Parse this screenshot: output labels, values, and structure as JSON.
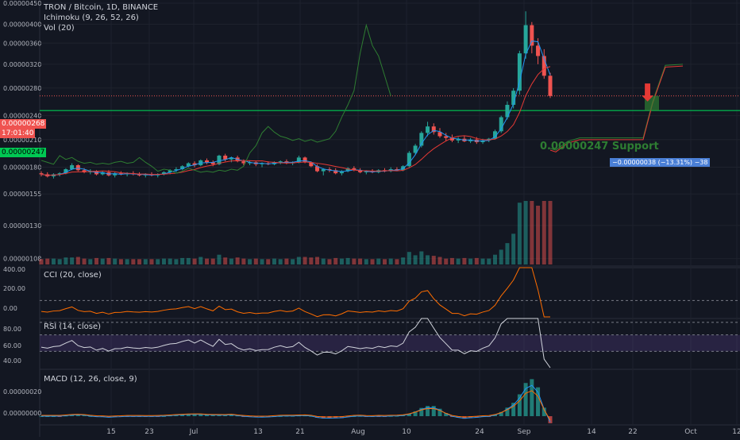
{
  "header": {
    "symbol_line": "TRON / Bitcoin, 1D, BINANCE",
    "ichimoku_label": "Ichimoku (9, 26, 52, 26)",
    "vol_label": "Vol (20)"
  },
  "indicators": {
    "cci_label": "CCI (20, close)",
    "rsi_label": "RSI (14, close)",
    "macd_label": "MACD (12, 26, close, 9)"
  },
  "price_tags": {
    "last_price": "0.00000268",
    "countdown": "17:01:40",
    "support_price": "0.00000247"
  },
  "annotations": {
    "support_text": "0.00000247 Support",
    "measure_text": "−0.00000038 (−13.31%) −38",
    "arrow_icon": "down-arrow-icon"
  },
  "colors": {
    "background": "#131722",
    "up_candle": "#26a69a",
    "down_candle": "#ef5350",
    "support_line": "#00c853",
    "cloud_green": "#2e7d32",
    "tenkan": "#2196f3",
    "kijun": "#e53935",
    "cci_line": "#ff6d00",
    "rsi_line": "#d1d4dc",
    "rsi_band": "#7e57c2",
    "macd_line": "#2196f3",
    "signal_line": "#ff6d00",
    "measure_box": "#4a7fd6"
  },
  "chart_data": {
    "type": "candlestick",
    "title": "TRON / Bitcoin, 1D, BINANCE",
    "y_axis": {
      "ticks": [
        "0.00000450",
        "0.00000400",
        "0.00000360",
        "0.00000320",
        "0.00000280",
        "0.00000240",
        "0.00000210",
        "0.00000180",
        "0.00000155",
        "0.00000130",
        "0.00000108"
      ]
    },
    "x_axis": {
      "ticks": [
        "15",
        "23",
        "Jul",
        "13",
        "21",
        "Aug",
        "10",
        "24",
        "Sep",
        "14",
        "22",
        "Oct",
        "12"
      ]
    },
    "candles": [
      [
        1.74,
        1.76,
        1.71,
        1.73
      ],
      [
        1.73,
        1.75,
        1.7,
        1.71
      ],
      [
        1.71,
        1.74,
        1.69,
        1.73
      ],
      [
        1.73,
        1.75,
        1.71,
        1.74
      ],
      [
        1.74,
        1.79,
        1.73,
        1.78
      ],
      [
        1.78,
        1.84,
        1.77,
        1.82
      ],
      [
        1.82,
        1.83,
        1.76,
        1.77
      ],
      [
        1.77,
        1.79,
        1.74,
        1.75
      ],
      [
        1.75,
        1.78,
        1.73,
        1.76
      ],
      [
        1.76,
        1.77,
        1.72,
        1.73
      ],
      [
        1.73,
        1.76,
        1.72,
        1.75
      ],
      [
        1.75,
        1.77,
        1.71,
        1.72
      ],
      [
        1.72,
        1.75,
        1.7,
        1.74
      ],
      [
        1.74,
        1.76,
        1.72,
        1.73
      ],
      [
        1.73,
        1.75,
        1.71,
        1.74
      ],
      [
        1.74,
        1.76,
        1.72,
        1.73
      ],
      [
        1.73,
        1.75,
        1.71,
        1.72
      ],
      [
        1.72,
        1.74,
        1.7,
        1.73
      ],
      [
        1.73,
        1.75,
        1.71,
        1.72
      ],
      [
        1.72,
        1.74,
        1.7,
        1.73
      ],
      [
        1.73,
        1.76,
        1.72,
        1.75
      ],
      [
        1.75,
        1.78,
        1.73,
        1.77
      ],
      [
        1.77,
        1.8,
        1.75,
        1.78
      ],
      [
        1.78,
        1.82,
        1.77,
        1.81
      ],
      [
        1.81,
        1.85,
        1.8,
        1.84
      ],
      [
        1.84,
        1.86,
        1.8,
        1.82
      ],
      [
        1.82,
        1.88,
        1.81,
        1.87
      ],
      [
        1.87,
        1.89,
        1.83,
        1.85
      ],
      [
        1.85,
        1.87,
        1.81,
        1.83
      ],
      [
        1.83,
        1.93,
        1.82,
        1.92
      ],
      [
        1.92,
        1.94,
        1.86,
        1.88
      ],
      [
        1.88,
        1.91,
        1.85,
        1.9
      ],
      [
        1.9,
        1.92,
        1.85,
        1.86
      ],
      [
        1.86,
        1.88,
        1.82,
        1.84
      ],
      [
        1.84,
        1.87,
        1.82,
        1.85
      ],
      [
        1.85,
        1.86,
        1.81,
        1.83
      ],
      [
        1.83,
        1.85,
        1.8,
        1.84
      ],
      [
        1.84,
        1.86,
        1.82,
        1.83
      ],
      [
        1.83,
        1.86,
        1.82,
        1.85
      ],
      [
        1.85,
        1.87,
        1.83,
        1.86
      ],
      [
        1.86,
        1.88,
        1.83,
        1.84
      ],
      [
        1.84,
        1.86,
        1.82,
        1.85
      ],
      [
        1.85,
        1.92,
        1.84,
        1.9
      ],
      [
        1.9,
        1.91,
        1.84,
        1.85
      ],
      [
        1.85,
        1.86,
        1.8,
        1.81
      ],
      [
        1.81,
        1.83,
        1.75,
        1.76
      ],
      [
        1.76,
        1.79,
        1.72,
        1.78
      ],
      [
        1.78,
        1.8,
        1.75,
        1.77
      ],
      [
        1.77,
        1.79,
        1.73,
        1.74
      ],
      [
        1.74,
        1.77,
        1.72,
        1.76
      ],
      [
        1.76,
        1.8,
        1.75,
        1.79
      ],
      [
        1.79,
        1.81,
        1.76,
        1.77
      ],
      [
        1.77,
        1.79,
        1.74,
        1.75
      ],
      [
        1.75,
        1.77,
        1.73,
        1.76
      ],
      [
        1.76,
        1.78,
        1.74,
        1.75
      ],
      [
        1.75,
        1.78,
        1.74,
        1.77
      ],
      [
        1.77,
        1.79,
        1.75,
        1.76
      ],
      [
        1.76,
        1.8,
        1.75,
        1.78
      ],
      [
        1.78,
        1.8,
        1.76,
        1.77
      ],
      [
        1.77,
        1.82,
        1.76,
        1.81
      ],
      [
        1.81,
        1.97,
        1.8,
        1.95
      ],
      [
        1.95,
        2.05,
        1.93,
        2.03
      ],
      [
        2.03,
        2.2,
        2.01,
        2.18
      ],
      [
        2.18,
        2.32,
        2.14,
        2.26
      ],
      [
        2.26,
        2.3,
        2.16,
        2.19
      ],
      [
        2.19,
        2.24,
        2.12,
        2.14
      ],
      [
        2.14,
        2.18,
        2.08,
        2.12
      ],
      [
        2.12,
        2.16,
        2.07,
        2.09
      ],
      [
        2.09,
        2.13,
        2.06,
        2.11
      ],
      [
        2.11,
        2.14,
        2.07,
        2.08
      ],
      [
        2.08,
        2.12,
        2.06,
        2.1
      ],
      [
        2.1,
        2.13,
        2.05,
        2.07
      ],
      [
        2.07,
        2.11,
        2.05,
        2.09
      ],
      [
        2.09,
        2.12,
        2.07,
        2.11
      ],
      [
        2.11,
        2.22,
        2.1,
        2.2
      ],
      [
        2.2,
        2.4,
        2.18,
        2.38
      ],
      [
        2.38,
        2.6,
        2.35,
        2.55
      ],
      [
        2.55,
        2.8,
        2.5,
        2.76
      ],
      [
        2.76,
        3.45,
        2.7,
        3.4
      ],
      [
        3.4,
        4.3,
        3.3,
        3.98
      ],
      [
        3.98,
        4.05,
        3.4,
        3.55
      ],
      [
        3.55,
        3.7,
        3.2,
        3.35
      ],
      [
        3.35,
        3.48,
        2.95,
        3.0
      ],
      [
        3.0,
        3.05,
        2.65,
        2.68
      ]
    ],
    "ichimoku_projection": [
      {
        "x_label": "Sep",
        "value": 2.08
      },
      {
        "x_label": "14",
        "value": 2.12
      },
      {
        "x_label": "22",
        "value": 2.12
      },
      {
        "x_label": "Oct",
        "value": 3.2
      }
    ],
    "support_level": 2.47,
    "cci": {
      "range": [
        -50,
        400
      ],
      "levels": [
        100,
        -100
      ]
    },
    "rsi": {
      "range": [
        30,
        90
      ],
      "levels": [
        70,
        50
      ]
    },
    "macd": {
      "range": [
        -5e-08,
        2.5e-07
      ]
    }
  }
}
